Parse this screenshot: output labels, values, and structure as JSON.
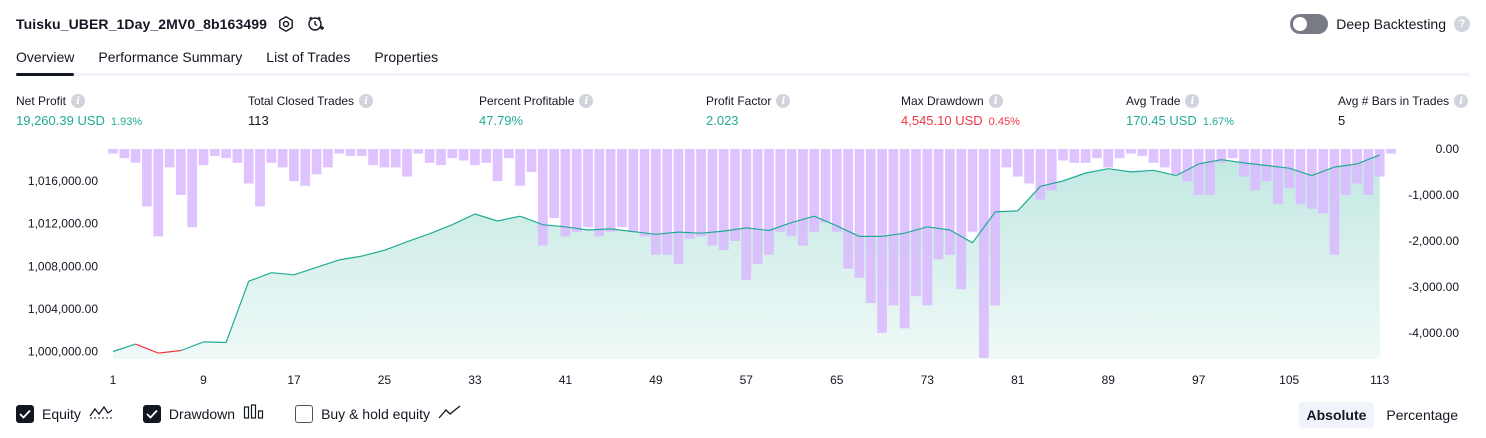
{
  "header": {
    "title": "Tuisku_UBER_1Day_2MV0_8b163499"
  },
  "deep_backtesting": {
    "label": "Deep Backtesting",
    "enabled": false
  },
  "tabs": [
    {
      "label": "Overview",
      "active": true
    },
    {
      "label": "Performance Summary",
      "active": false
    },
    {
      "label": "List of Trades",
      "active": false
    },
    {
      "label": "Properties",
      "active": false
    }
  ],
  "stats": {
    "net_profit": {
      "label": "Net Profit",
      "value": "19,260.39 USD",
      "pct": "1.93%"
    },
    "total_closed_trades": {
      "label": "Total Closed Trades",
      "value": "113"
    },
    "percent_profitable": {
      "label": "Percent Profitable",
      "value": "47.79%"
    },
    "profit_factor": {
      "label": "Profit Factor",
      "value": "2.023"
    },
    "max_drawdown": {
      "label": "Max Drawdown",
      "value": "4,545.10 USD",
      "pct": "0.45%"
    },
    "avg_trade": {
      "label": "Avg Trade",
      "value": "170.45 USD",
      "pct": "1.67%"
    },
    "avg_bars": {
      "label": "Avg # Bars in Trades",
      "value": "5"
    }
  },
  "colors": {
    "equity_up": "#22ab94",
    "equity_down": "#f23645",
    "drawdown_bar": "#d9b8ff",
    "text": "#131722"
  },
  "chart_data": {
    "type": "area",
    "x_ticks": [
      1,
      9,
      17,
      25,
      33,
      41,
      49,
      57,
      65,
      73,
      81,
      89,
      97,
      105,
      113
    ],
    "left_axis_ticks": [
      "1,016,000.00",
      "1,012,000.00",
      "1,008,000.00",
      "1,004,000.00",
      "1,000,000.00"
    ],
    "left_axis_tick_values": [
      1016000,
      1012000,
      1008000,
      1004000,
      1000000
    ],
    "right_axis_ticks": [
      "0.00",
      "-1,000.00",
      "-2,000.00",
      "-3,000.00",
      "-4,000.00"
    ],
    "right_axis_tick_values": [
      0,
      -1000,
      -2000,
      -3000,
      -4000
    ],
    "left_ylim": [
      999300,
      1019000
    ],
    "right_ylim": [
      -4545.1,
      0
    ],
    "series": [
      {
        "name": "Equity",
        "x": [
          1,
          3,
          5,
          7,
          9,
          11,
          13,
          15,
          17,
          19,
          21,
          23,
          25,
          27,
          29,
          31,
          33,
          35,
          37,
          39,
          41,
          43,
          45,
          47,
          49,
          51,
          53,
          55,
          57,
          59,
          61,
          63,
          65,
          67,
          69,
          71,
          73,
          75,
          77,
          79,
          81,
          83,
          85,
          87,
          89,
          91,
          93,
          95,
          97,
          99,
          101,
          103,
          105,
          107,
          109,
          111,
          113
        ],
        "values": [
          1000000,
          1000700,
          999850,
          1000100,
          1000900,
          1000850,
          1006600,
          1007400,
          1007200,
          1007900,
          1008600,
          1008950,
          1009500,
          1010300,
          1011050,
          1011900,
          1012900,
          1012250,
          1012700,
          1011900,
          1011700,
          1011400,
          1011500,
          1011250,
          1011000,
          1011200,
          1011100,
          1011300,
          1011600,
          1011350,
          1012100,
          1012700,
          1011800,
          1010800,
          1010800,
          1011100,
          1011700,
          1011400,
          1010200,
          1013100,
          1013200,
          1015500,
          1016000,
          1016750,
          1017150,
          1016850,
          1017000,
          1016500,
          1017600,
          1018000,
          1017700,
          1017450,
          1017200,
          1016500,
          1017300,
          1017600,
          1018450
        ]
      },
      {
        "name": "Drawdown",
        "values": [
          -100,
          -200,
          -300,
          -1250,
          -1900,
          -400,
          -1000,
          -1700,
          -350,
          -150,
          -200,
          -300,
          -750,
          -1250,
          -300,
          -400,
          -700,
          -800,
          -550,
          -400,
          -100,
          -150,
          -150,
          -350,
          -400,
          -400,
          -600,
          -100,
          -300,
          -350,
          -200,
          -250,
          -350,
          -300,
          -700,
          -200,
          -800,
          -500,
          -2100,
          -1500,
          -1900,
          -1800,
          -1700,
          -1900,
          -1800,
          -1700,
          -1800,
          -1900,
          -2300,
          -2300,
          -2500,
          -1950,
          -1900,
          -2100,
          -2200,
          -2000,
          -2850,
          -2500,
          -2300,
          -1800,
          -1900,
          -2100,
          -1800,
          -1600,
          -1800,
          -2600,
          -2800,
          -3350,
          -4000,
          -3400,
          -3900,
          -3200,
          -3400,
          -2400,
          -2300,
          -3050,
          -1800,
          -4545,
          -3400,
          -400,
          -600,
          -750,
          -1100,
          -900,
          -250,
          -300,
          -300,
          -200,
          -400,
          -200,
          -100,
          -150,
          -300,
          -400,
          -550,
          -700,
          -1000,
          -1000,
          -300,
          -200,
          -600,
          -900,
          -700,
          -1200,
          -850,
          -1200,
          -1300,
          -1400,
          -2300,
          -1000,
          -750,
          -1000,
          -600,
          -100
        ]
      }
    ]
  },
  "legend": {
    "items": [
      {
        "label": "Equity",
        "checked": true
      },
      {
        "label": "Drawdown",
        "checked": true
      },
      {
        "label": "Buy & hold equity",
        "checked": false
      }
    ]
  },
  "modes": [
    {
      "label": "Absolute",
      "active": true
    },
    {
      "label": "Percentage",
      "active": false
    }
  ]
}
